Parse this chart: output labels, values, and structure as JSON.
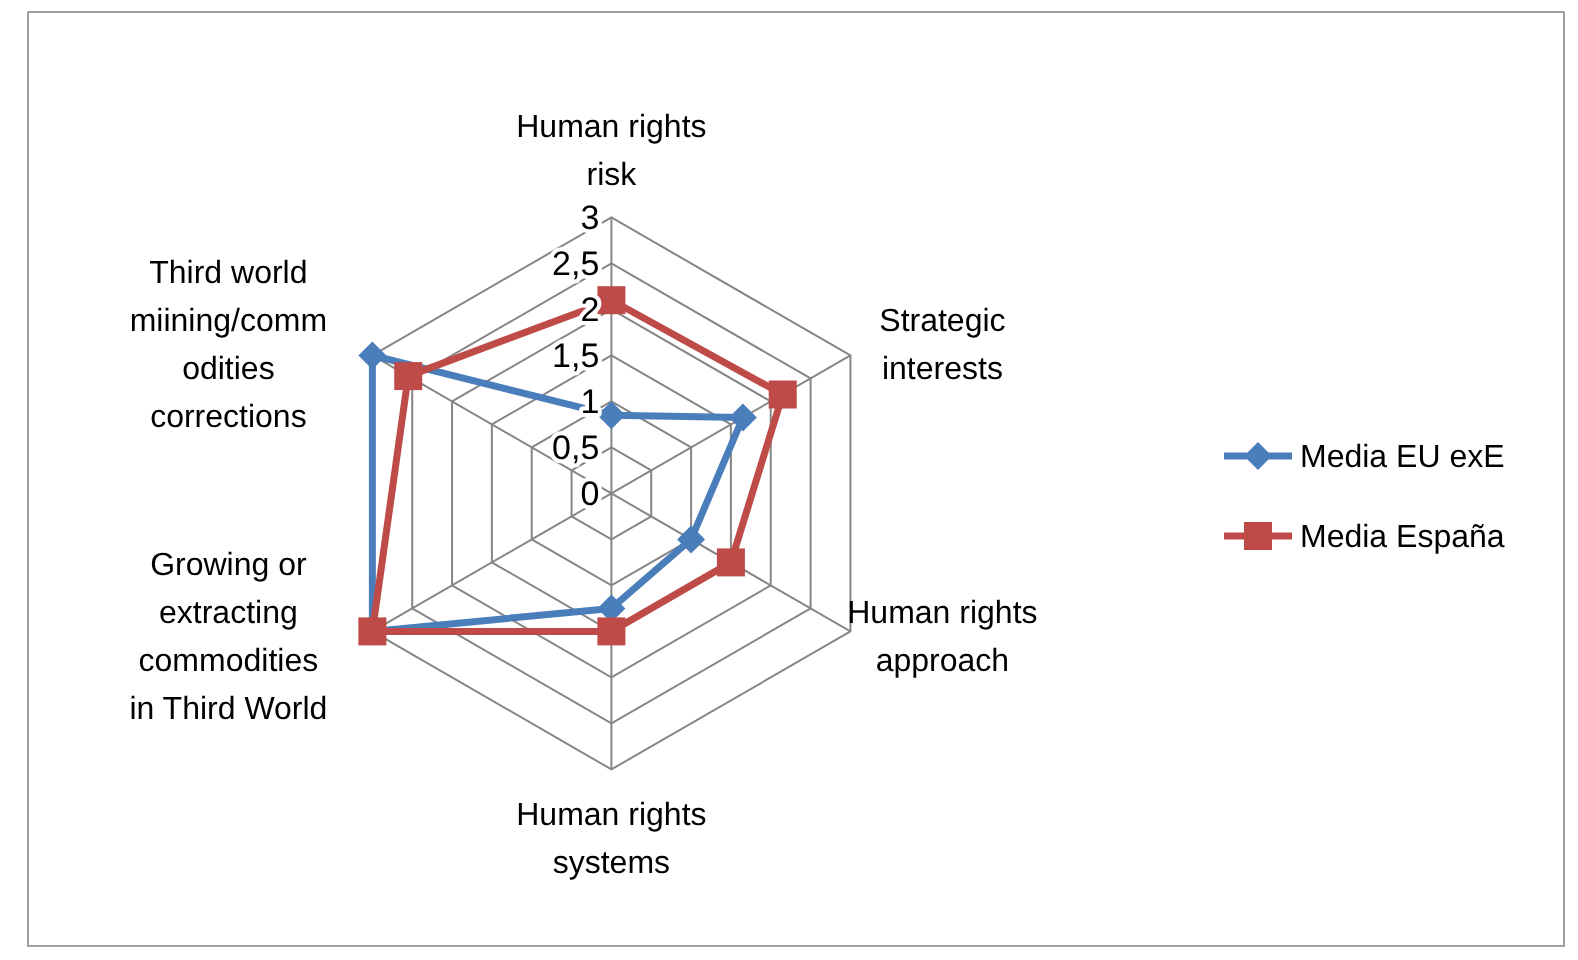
{
  "chart_data": {
    "type": "radar",
    "categories": [
      "Human rights\nrisk",
      "Strategic\ninterests",
      "Human rights\napproach",
      "Human rights\nsystems",
      "Growing or\nextracting\ncommodities\nin Third World",
      "Third world\nmiining/comm\nodities\ncorrections"
    ],
    "series": [
      {
        "name": "Media EU exE",
        "color": "#4a7ebb",
        "marker": "diamond",
        "values": [
          0.85,
          1.65,
          1,
          1.25,
          3,
          3
        ]
      },
      {
        "name": "Media España",
        "color": "#be4b48",
        "marker": "square",
        "values": [
          2.1,
          2.15,
          1.5,
          1.5,
          3,
          2.55
        ]
      }
    ],
    "ylim": [
      0,
      3
    ],
    "yticks": [
      0,
      {
        "value": 0.5,
        "label": "0,5"
      },
      1,
      {
        "value": 1.5,
        "label": "1,5"
      },
      2,
      {
        "value": 2.5,
        "label": "2,5"
      },
      3
    ],
    "grid": true,
    "legend": "right"
  }
}
